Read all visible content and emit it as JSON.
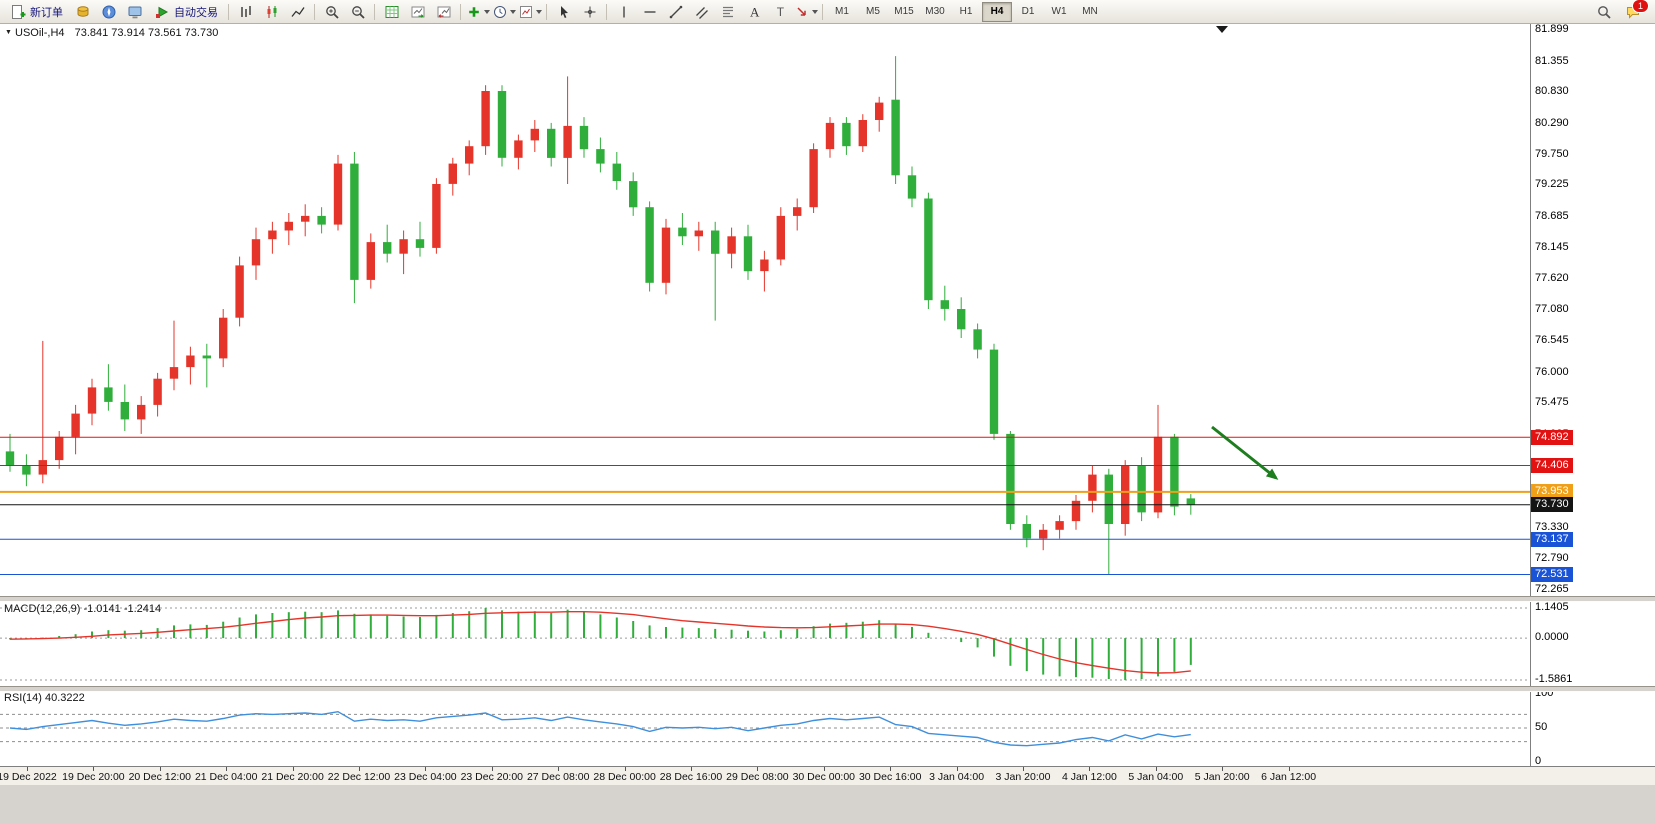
{
  "toolbar": {
    "new_order_label": "新订单",
    "autotrading_label": "自动交易",
    "timeframes": [
      "M1",
      "M5",
      "M15",
      "M30",
      "H1",
      "H4",
      "D1",
      "W1",
      "MN"
    ],
    "active_timeframe": "H4",
    "notification_count": "1"
  },
  "chart": {
    "title": "USOil-,H4",
    "ohlc": "73.841 73.914 73.561 73.730",
    "macd_label": "MACD(12,26,9) -1.0141 -1.2414",
    "rsi_label": "RSI(14) 40.3222",
    "price_axis_labels": [
      "81.899",
      "81.355",
      "80.830",
      "80.290",
      "79.750",
      "79.225",
      "78.685",
      "78.145",
      "77.620",
      "77.080",
      "76.545",
      "76.000",
      "75.475",
      "74.935",
      "73.330",
      "72.790",
      "72.265"
    ],
    "macd_axis_labels": [
      "1.1405",
      "0.0000",
      "-1.5861"
    ],
    "rsi_axis_labels": [
      "100",
      "50",
      "0"
    ],
    "time_labels": [
      "19 Dec 2022",
      "19 Dec 20:00",
      "20 Dec 12:00",
      "21 Dec 04:00",
      "21 Dec 20:00",
      "22 Dec 12:00",
      "23 Dec 04:00",
      "23 Dec 20:00",
      "27 Dec 08:00",
      "28 Dec 00:00",
      "28 Dec 16:00",
      "29 Dec 08:00",
      "30 Dec 00:00",
      "30 Dec 16:00",
      "3 Jan 04:00",
      "3 Jan 20:00",
      "4 Jan 12:00",
      "5 Jan 04:00",
      "5 Jan 20:00",
      "6 Jan 12:00"
    ],
    "levels": [
      {
        "price": 74.892,
        "label": "74.892",
        "color": "#e31212",
        "width": 1
      },
      {
        "price": 74.406,
        "label": "74.406",
        "color": "#e31212",
        "width": 1
      },
      {
        "price": 73.953,
        "label": "73.953",
        "color": "#f0a018",
        "width": 2
      },
      {
        "price": 73.73,
        "label": "73.730",
        "color": "#141414",
        "width": 1
      },
      {
        "price": 73.137,
        "label": "73.137",
        "color": "#1a53d6",
        "width": 1
      },
      {
        "price": 72.531,
        "label": "72.531",
        "color": "#1a53d6",
        "width": 1
      }
    ],
    "colors": {
      "up": "#e5352b",
      "down": "#2fae3b",
      "macd_hist": "#2fae3b",
      "macd_signal": "#e5352b",
      "rsi_line": "#3f8fdc",
      "arrow": "#1e7d1e"
    }
  },
  "chart_data": {
    "type": "candlestick",
    "symbol": "USOil",
    "period": "H4",
    "price_range": [
      72.265,
      81.899
    ],
    "candles": [
      [
        74.65,
        74.95,
        74.3,
        74.4
      ],
      [
        74.4,
        74.6,
        74.05,
        74.25
      ],
      [
        74.25,
        76.55,
        74.1,
        74.5
      ],
      [
        74.5,
        75.0,
        74.35,
        74.9
      ],
      [
        74.9,
        75.45,
        74.6,
        75.3
      ],
      [
        75.3,
        75.9,
        75.1,
        75.75
      ],
      [
        75.75,
        76.15,
        75.35,
        75.5
      ],
      [
        75.5,
        75.8,
        75.0,
        75.2
      ],
      [
        75.2,
        75.6,
        74.95,
        75.45
      ],
      [
        75.45,
        76.0,
        75.25,
        75.9
      ],
      [
        75.9,
        76.9,
        75.7,
        76.1
      ],
      [
        76.1,
        76.45,
        75.8,
        76.3
      ],
      [
        76.3,
        76.5,
        75.75,
        76.25
      ],
      [
        76.25,
        77.1,
        76.1,
        76.95
      ],
      [
        76.95,
        78.0,
        76.8,
        77.85
      ],
      [
        77.85,
        78.5,
        77.6,
        78.3
      ],
      [
        78.3,
        78.6,
        78.05,
        78.45
      ],
      [
        78.45,
        78.75,
        78.2,
        78.6
      ],
      [
        78.6,
        78.9,
        78.35,
        78.7
      ],
      [
        78.7,
        78.85,
        78.4,
        78.55
      ],
      [
        78.55,
        79.75,
        78.45,
        79.6
      ],
      [
        79.6,
        79.8,
        77.2,
        77.6
      ],
      [
        77.6,
        78.4,
        77.45,
        78.25
      ],
      [
        78.25,
        78.55,
        77.9,
        78.05
      ],
      [
        78.05,
        78.45,
        77.7,
        78.3
      ],
      [
        78.3,
        78.6,
        78.0,
        78.15
      ],
      [
        78.15,
        79.35,
        78.05,
        79.25
      ],
      [
        79.25,
        79.7,
        79.05,
        79.6
      ],
      [
        79.6,
        80.0,
        79.4,
        79.9
      ],
      [
        79.9,
        80.95,
        79.75,
        80.85
      ],
      [
        80.85,
        80.95,
        79.55,
        79.7
      ],
      [
        79.7,
        80.1,
        79.5,
        80.0
      ],
      [
        80.0,
        80.35,
        79.8,
        80.2
      ],
      [
        80.2,
        80.3,
        79.55,
        79.7
      ],
      [
        79.7,
        81.1,
        79.25,
        80.25
      ],
      [
        80.25,
        80.4,
        79.7,
        79.85
      ],
      [
        79.85,
        80.05,
        79.45,
        79.6
      ],
      [
        79.6,
        79.8,
        79.15,
        79.3
      ],
      [
        79.3,
        79.45,
        78.7,
        78.85
      ],
      [
        78.85,
        78.95,
        77.4,
        77.55
      ],
      [
        77.55,
        78.65,
        77.35,
        78.5
      ],
      [
        78.5,
        78.75,
        78.2,
        78.35
      ],
      [
        78.35,
        78.6,
        78.1,
        78.45
      ],
      [
        78.45,
        78.6,
        76.9,
        78.05
      ],
      [
        78.05,
        78.5,
        77.8,
        78.35
      ],
      [
        78.35,
        78.55,
        77.6,
        77.75
      ],
      [
        77.75,
        78.1,
        77.4,
        77.95
      ],
      [
        77.95,
        78.85,
        77.85,
        78.7
      ],
      [
        78.7,
        79.0,
        78.45,
        78.85
      ],
      [
        78.85,
        79.95,
        78.75,
        79.85
      ],
      [
        79.85,
        80.4,
        79.7,
        80.3
      ],
      [
        80.3,
        80.4,
        79.75,
        79.9
      ],
      [
        79.9,
        80.45,
        79.8,
        80.35
      ],
      [
        80.35,
        80.75,
        80.15,
        80.65
      ],
      [
        80.7,
        81.45,
        79.25,
        79.4
      ],
      [
        79.4,
        79.55,
        78.85,
        79.0
      ],
      [
        79.0,
        79.1,
        77.1,
        77.25
      ],
      [
        77.25,
        77.5,
        76.9,
        77.1
      ],
      [
        77.1,
        77.3,
        76.6,
        76.75
      ],
      [
        76.75,
        76.85,
        76.25,
        76.4
      ],
      [
        76.4,
        76.5,
        74.85,
        74.95
      ],
      [
        74.95,
        75.0,
        73.3,
        73.4
      ],
      [
        73.4,
        73.55,
        73.0,
        73.15
      ],
      [
        73.15,
        73.4,
        72.95,
        73.3
      ],
      [
        73.3,
        73.55,
        73.15,
        73.45
      ],
      [
        73.45,
        73.9,
        73.3,
        73.8
      ],
      [
        73.8,
        74.4,
        73.6,
        74.25
      ],
      [
        74.25,
        74.35,
        72.53,
        73.4
      ],
      [
        73.4,
        74.5,
        73.2,
        74.4
      ],
      [
        74.4,
        74.55,
        73.45,
        73.6
      ],
      [
        73.6,
        75.45,
        73.5,
        74.9
      ],
      [
        74.9,
        74.95,
        73.55,
        73.7
      ],
      [
        73.841,
        73.914,
        73.561,
        73.73
      ]
    ],
    "macd": {
      "range": [
        -1.5861,
        1.1405
      ],
      "current": -1.0141,
      "signal_current": -1.2414,
      "hist": [
        -0.05,
        -0.02,
        0.02,
        0.08,
        0.15,
        0.25,
        0.3,
        0.28,
        0.3,
        0.38,
        0.48,
        0.52,
        0.5,
        0.62,
        0.78,
        0.9,
        0.95,
        0.98,
        1.0,
        0.98,
        1.05,
        0.92,
        0.9,
        0.85,
        0.82,
        0.8,
        0.88,
        0.95,
        1.02,
        1.14,
        1.05,
        1.0,
        1.02,
        0.95,
        1.08,
        1.0,
        0.9,
        0.78,
        0.65,
        0.48,
        0.42,
        0.4,
        0.38,
        0.35,
        0.32,
        0.28,
        0.25,
        0.3,
        0.35,
        0.45,
        0.55,
        0.58,
        0.62,
        0.68,
        0.55,
        0.42,
        0.2,
        0.02,
        -0.15,
        -0.35,
        -0.7,
        -1.05,
        -1.25,
        -1.38,
        -1.45,
        -1.48,
        -1.5,
        -1.55,
        -1.59,
        -1.55,
        -1.45,
        -1.28,
        -1.0141
      ],
      "signal": [
        -0.04,
        -0.03,
        -0.02,
        0.0,
        0.03,
        0.07,
        0.12,
        0.15,
        0.18,
        0.22,
        0.27,
        0.32,
        0.36,
        0.41,
        0.48,
        0.56,
        0.63,
        0.7,
        0.76,
        0.8,
        0.85,
        0.86,
        0.87,
        0.87,
        0.86,
        0.85,
        0.85,
        0.87,
        0.9,
        0.94,
        0.96,
        0.97,
        0.98,
        0.98,
        1.0,
        1.0,
        0.98,
        0.94,
        0.89,
        0.81,
        0.73,
        0.66,
        0.61,
        0.56,
        0.51,
        0.46,
        0.42,
        0.4,
        0.39,
        0.4,
        0.43,
        0.46,
        0.49,
        0.53,
        0.53,
        0.51,
        0.45,
        0.36,
        0.26,
        0.14,
        -0.03,
        -0.23,
        -0.43,
        -0.62,
        -0.79,
        -0.93,
        -1.04,
        -1.14,
        -1.23,
        -1.29,
        -1.32,
        -1.31,
        -1.2414
      ]
    },
    "rsi": {
      "current": 40.3222,
      "levels": [
        70,
        50,
        30
      ],
      "values": [
        50,
        48,
        52,
        55,
        58,
        61,
        57,
        54,
        56,
        59,
        63,
        61,
        60,
        64,
        69,
        71,
        70,
        71,
        72,
        70,
        74,
        60,
        63,
        61,
        62,
        60,
        65,
        67,
        69,
        72,
        62,
        63,
        65,
        61,
        66,
        62,
        59,
        56,
        52,
        45,
        51,
        50,
        51,
        49,
        51,
        46,
        50,
        54,
        56,
        61,
        64,
        62,
        64,
        66,
        55,
        52,
        42,
        40,
        38,
        36,
        29,
        25,
        24,
        26,
        28,
        33,
        36,
        31,
        40,
        34,
        41,
        37,
        40.3222
      ]
    }
  }
}
